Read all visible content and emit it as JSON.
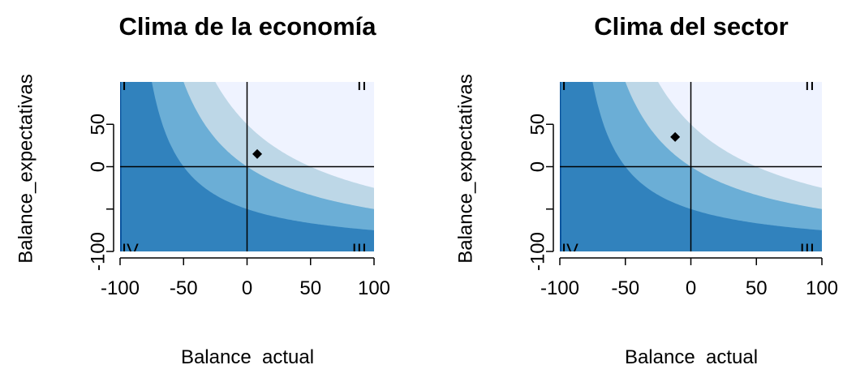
{
  "chart_data": [
    {
      "type": "heatmap",
      "title": "Clima de la economía",
      "xlabel": "Balance_actual",
      "ylabel": "Balance_expectativas",
      "xlim": [
        -100,
        100
      ],
      "ylim": [
        -100,
        100
      ],
      "x_ticks": [
        -100,
        -50,
        0,
        50,
        100
      ],
      "y_ticks": [
        -100,
        -50,
        0,
        50
      ],
      "x_tick_labels": [
        "-100",
        "-50",
        "0",
        "50",
        "100"
      ],
      "y_tick_labels": [
        "-100",
        "",
        "0",
        "50"
      ],
      "quadrant_labels": [
        "I",
        "II",
        "III",
        "IV"
      ],
      "point": {
        "x": 8,
        "y": 15
      },
      "contour_levels": [
        -100,
        -50,
        0,
        50,
        100
      ],
      "colors": [
        "#08519c",
        "#3182bd",
        "#6baed6",
        "#bdd7e7",
        "#eff3ff"
      ]
    },
    {
      "type": "heatmap",
      "title": "Clima del sector",
      "xlabel": "Balance_actual",
      "ylabel": "Balance_expectativas",
      "xlim": [
        -100,
        100
      ],
      "ylim": [
        -100,
        100
      ],
      "x_ticks": [
        -100,
        -50,
        0,
        50,
        100
      ],
      "y_ticks": [
        -100,
        -50,
        0,
        50
      ],
      "x_tick_labels": [
        "-100",
        "-50",
        "0",
        "50",
        "100"
      ],
      "y_tick_labels": [
        "-100",
        "",
        "0",
        "50"
      ],
      "quadrant_labels": [
        "I",
        "II",
        "III",
        "IV"
      ],
      "point": {
        "x": -12,
        "y": 35
      },
      "contour_levels": [
        -100,
        -50,
        0,
        50,
        100
      ],
      "colors": [
        "#08519c",
        "#3182bd",
        "#6baed6",
        "#bdd7e7",
        "#eff3ff"
      ]
    }
  ]
}
